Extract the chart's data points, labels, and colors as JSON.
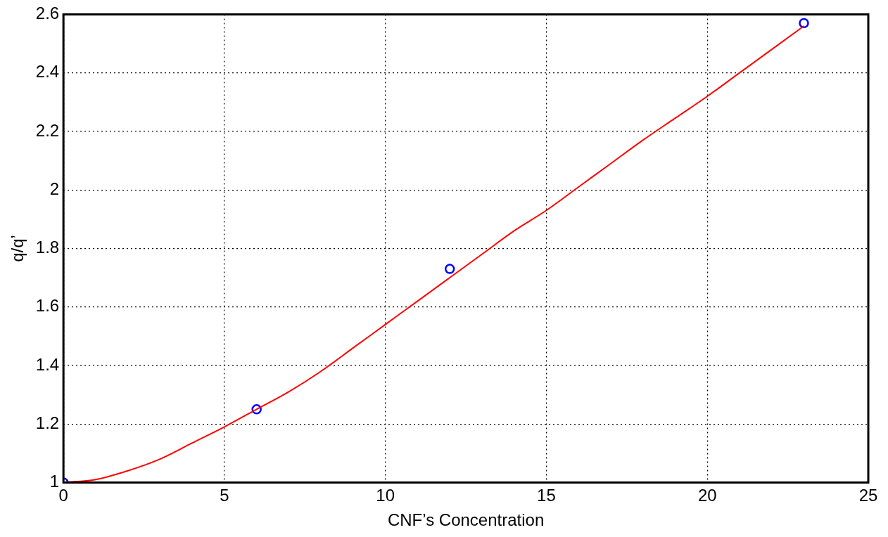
{
  "chart_data": {
    "type": "scatter",
    "xlabel": "CNF’s Concentration",
    "ylabel": "q/q’",
    "xlim": [
      0,
      25
    ],
    "xticks": [
      0,
      5,
      10,
      15,
      20,
      25
    ],
    "ylim": [
      1,
      2.6
    ],
    "yticks": [
      1,
      1.2,
      1.4,
      1.6,
      1.8,
      2,
      2.2,
      2.4,
      2.6
    ],
    "grid": true,
    "legend": false,
    "series": [
      {
        "type": "line",
        "color": "#ff0000",
        "marker": "none",
        "line_style": "solid",
        "x": [
          0,
          1,
          2,
          3,
          4,
          5,
          6,
          7,
          8,
          9,
          10,
          11,
          12,
          13,
          14,
          15,
          16,
          17,
          18,
          19,
          20,
          21,
          22,
          23
        ],
        "values": [
          1.0,
          1.01,
          1.04,
          1.08,
          1.135,
          1.19,
          1.25,
          1.31,
          1.38,
          1.46,
          1.54,
          1.62,
          1.7,
          1.78,
          1.86,
          1.93,
          2.01,
          2.09,
          2.17,
          2.245,
          2.32,
          2.4,
          2.48,
          2.56
        ]
      },
      {
        "color": "#0000ff",
        "marker": "circle",
        "x": [
          0,
          6,
          12,
          23
        ],
        "values": [
          1.0,
          1.25,
          1.73,
          2.57
        ]
      }
    ]
  }
}
